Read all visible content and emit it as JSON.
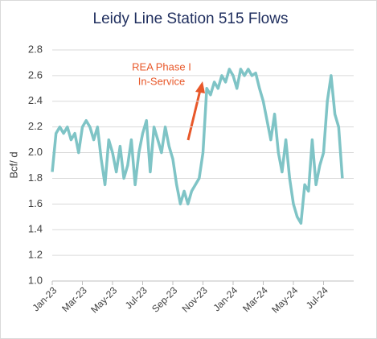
{
  "chart_data": {
    "type": "line",
    "title": "Leidy Line Station 515 Flows",
    "y_label": "Bcf/ d",
    "annotation": [
      "REA Phase I",
      "In-Service"
    ],
    "categories": [
      "Jan-23",
      null,
      null,
      null,
      null,
      null,
      null,
      null,
      "Mar-23",
      null,
      null,
      null,
      null,
      null,
      null,
      null,
      "May-23",
      null,
      null,
      null,
      null,
      null,
      null,
      null,
      "Jul-23",
      null,
      null,
      null,
      null,
      null,
      null,
      null,
      "Sep-23",
      null,
      null,
      null,
      null,
      null,
      null,
      null,
      "Nov-23",
      null,
      null,
      null,
      null,
      null,
      null,
      null,
      "Jan-24",
      null,
      null,
      null,
      null,
      null,
      null,
      null,
      "Mar-24",
      null,
      null,
      null,
      null,
      null,
      null,
      null,
      "May-24",
      null,
      null,
      null,
      null,
      null,
      null,
      null,
      "Jul-24",
      null,
      null,
      null,
      null,
      null
    ],
    "series": [
      {
        "name": "Flows",
        "color": "#7fc4c6",
        "values": [
          1.85,
          2.15,
          2.2,
          2.15,
          2.2,
          2.1,
          2.15,
          2.0,
          2.2,
          2.25,
          2.2,
          2.1,
          2.2,
          1.95,
          1.75,
          2.1,
          2.0,
          1.85,
          2.05,
          1.8,
          1.9,
          2.1,
          1.75,
          2.0,
          2.15,
          2.25,
          1.85,
          2.2,
          2.1,
          2.0,
          2.2,
          2.05,
          1.95,
          1.75,
          1.6,
          1.7,
          1.6,
          1.7,
          1.75,
          1.8,
          2.0,
          2.5,
          2.45,
          2.55,
          2.5,
          2.6,
          2.55,
          2.65,
          2.6,
          2.5,
          2.65,
          2.6,
          2.65,
          2.6,
          2.62,
          2.5,
          2.4,
          2.25,
          2.1,
          2.3,
          2.0,
          1.85,
          2.1,
          1.8,
          1.6,
          1.5,
          1.45,
          1.75,
          1.7,
          2.1,
          1.75,
          1.9,
          2.0,
          2.4,
          2.6,
          2.3,
          2.2,
          1.8
        ]
      }
    ],
    "ylim": [
      1.0,
      2.8
    ],
    "yticks": [
      {
        "value": 1.0,
        "label": "1.0"
      },
      1.2,
      1.4,
      1.6,
      1.8,
      {
        "value": 2.0,
        "label": "2.0"
      },
      2.2,
      2.4,
      2.6,
      2.8
    ],
    "grid": true
  }
}
